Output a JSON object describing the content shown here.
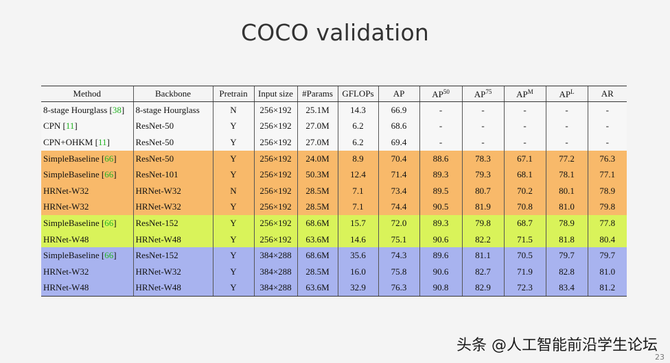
{
  "title": "COCO validation",
  "table": {
    "headers": [
      "Method",
      "Backbone",
      "Pretrain",
      "Input size",
      "#Params",
      "GFLOPs",
      "AP",
      "AP",
      "AP",
      "AP",
      "AP",
      "AR"
    ],
    "header_sups": {
      "7": "50",
      "8": "75",
      "9": "M",
      "10": "L"
    },
    "rows": [
      {
        "group": "plain",
        "cells": [
          "8-stage Hourglass",
          "8-stage Hourglass",
          "N",
          "256×192",
          "25.1M",
          "14.3",
          "66.9",
          "-",
          "-",
          "-",
          "-",
          "-"
        ],
        "ref": "38"
      },
      {
        "group": "plain",
        "cells": [
          "CPN",
          "ResNet-50",
          "Y",
          "256×192",
          "27.0M",
          "6.2",
          "68.6",
          "-",
          "-",
          "-",
          "-",
          "-"
        ],
        "ref": "11"
      },
      {
        "group": "plain",
        "cells": [
          "CPN+OHKM",
          "ResNet-50",
          "Y",
          "256×192",
          "27.0M",
          "6.2",
          "69.4",
          "-",
          "-",
          "-",
          "-",
          "-"
        ],
        "ref": "11"
      },
      {
        "group": "orange",
        "cells": [
          "SimpleBaseline",
          "ResNet-50",
          "Y",
          "256×192",
          "24.0M",
          "8.9",
          "70.4",
          "88.6",
          "78.3",
          "67.1",
          "77.2",
          "76.3"
        ],
        "ref": "66"
      },
      {
        "group": "orange",
        "cells": [
          "SimpleBaseline",
          "ResNet-101",
          "Y",
          "256×192",
          "50.3M",
          "12.4",
          "71.4",
          "89.3",
          "79.3",
          "68.1",
          "78.1",
          "77.1"
        ],
        "ref": "66"
      },
      {
        "group": "orange",
        "cells": [
          "HRNet-W32",
          "HRNet-W32",
          "N",
          "256×192",
          "28.5M",
          "7.1",
          "73.4",
          "89.5",
          "80.7",
          "70.2",
          "80.1",
          "78.9"
        ],
        "ref": ""
      },
      {
        "group": "orange",
        "cells": [
          "HRNet-W32",
          "HRNet-W32",
          "Y",
          "256×192",
          "28.5M",
          "7.1",
          "74.4",
          "90.5",
          "81.9",
          "70.8",
          "81.0",
          "79.8"
        ],
        "ref": ""
      },
      {
        "group": "yellow",
        "cells": [
          "SimpleBaseline",
          "ResNet-152",
          "Y",
          "256×192",
          "68.6M",
          "15.7",
          "72.0",
          "89.3",
          "79.8",
          "68.7",
          "78.9",
          "77.8"
        ],
        "ref": "66"
      },
      {
        "group": "yellow",
        "cells": [
          "HRNet-W48",
          "HRNet-W48",
          "Y",
          "256×192",
          "63.6M",
          "14.6",
          "75.1",
          "90.6",
          "82.2",
          "71.5",
          "81.8",
          "80.4"
        ],
        "ref": ""
      },
      {
        "group": "blue",
        "cells": [
          "SimpleBaseline",
          "ResNet-152",
          "Y",
          "384×288",
          "68.6M",
          "35.6",
          "74.3",
          "89.6",
          "81.1",
          "70.5",
          "79.7",
          "79.7"
        ],
        "ref": "66"
      },
      {
        "group": "blue",
        "cells": [
          "HRNet-W32",
          "HRNet-W32",
          "Y",
          "384×288",
          "28.5M",
          "16.0",
          "75.8",
          "90.6",
          "82.7",
          "71.9",
          "82.8",
          "81.0"
        ],
        "ref": ""
      },
      {
        "group": "blue",
        "cells": [
          "HRNet-W48",
          "HRNet-W48",
          "Y",
          "384×288",
          "63.6M",
          "32.9",
          "76.3",
          "90.8",
          "82.9",
          "72.3",
          "83.4",
          "81.2"
        ],
        "ref": "",
        "bold_from": 6
      }
    ]
  },
  "colors": {
    "orange": "#f8b96a",
    "yellow": "#d9f35a",
    "blue": "#a8b3ef",
    "ref": "#22b322"
  },
  "watermark": "头条 @人工智能前沿学生论坛",
  "page_number": "23"
}
